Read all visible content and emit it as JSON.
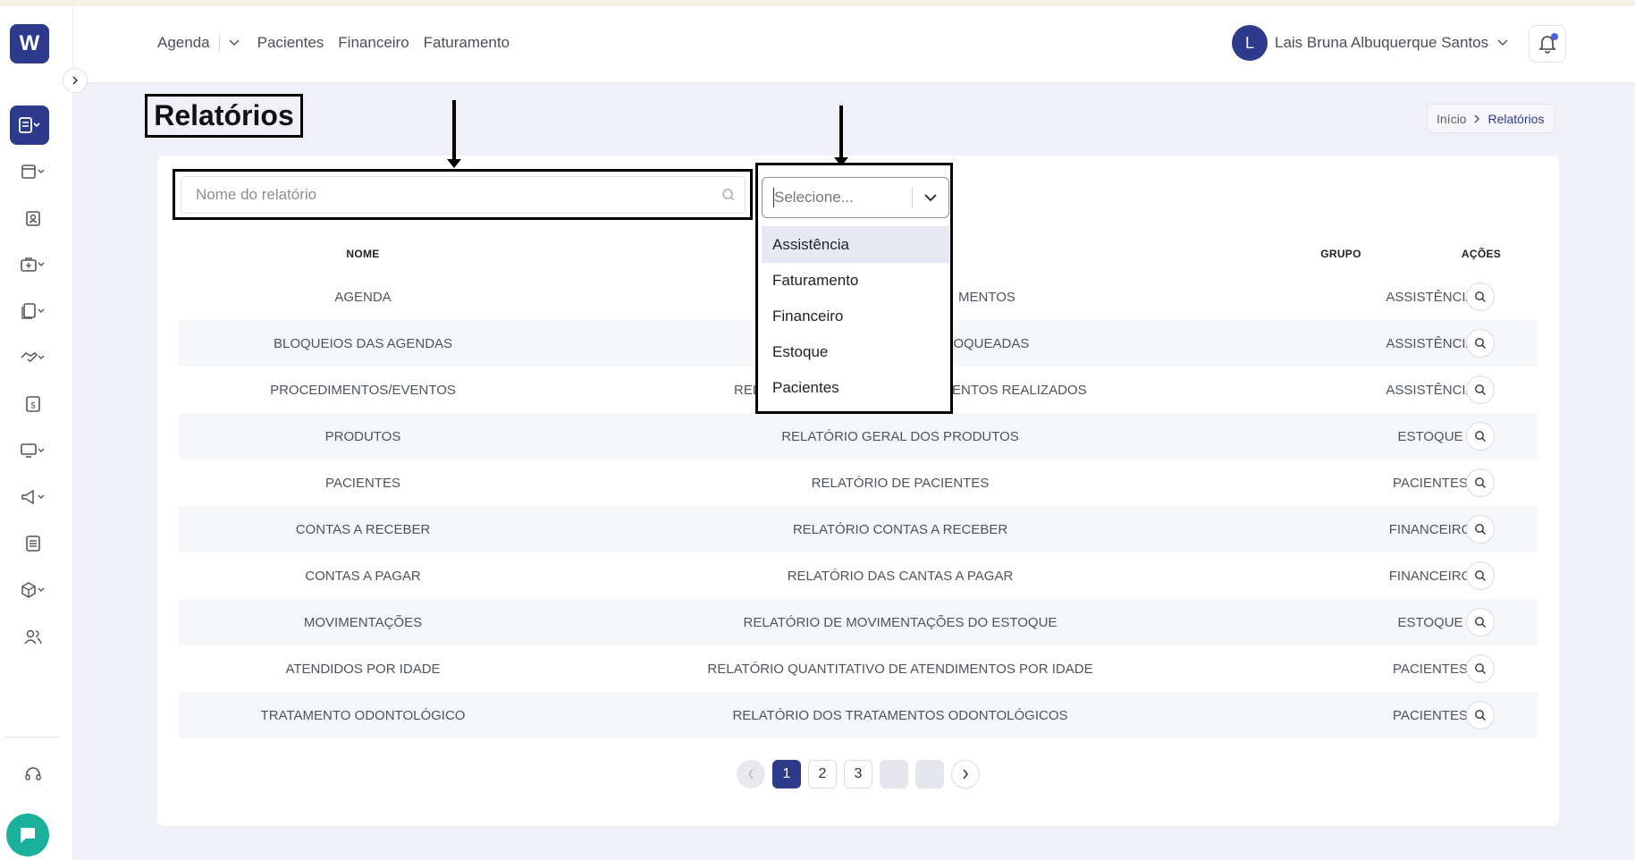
{
  "brand": {
    "logo_letter": "W"
  },
  "header": {
    "nav": [
      {
        "label": "Agenda"
      },
      {
        "label": "Pacientes"
      },
      {
        "label": "Financeiro"
      },
      {
        "label": "Faturamento"
      }
    ],
    "user": {
      "initial": "L",
      "name": "Lais Bruna Albuquerque Santos"
    }
  },
  "page": {
    "title": "Relatórios",
    "breadcrumb": {
      "home": "Início",
      "current": "Relatórios"
    }
  },
  "filters": {
    "search_placeholder": "Nome do relatório",
    "group_select": {
      "placeholder": "Selecione...",
      "options": [
        "Assistência",
        "Faturamento",
        "Financeiro",
        "Estoque",
        "Pacientes"
      ],
      "highlighted": "Assistência"
    }
  },
  "table": {
    "columns": {
      "name": "NOME",
      "group": "GRUPO",
      "actions": "AÇÕES"
    },
    "rows": [
      {
        "name": "AGENDA",
        "description": "MENTOS",
        "group": "ASSISTÊNCIA"
      },
      {
        "name": "BLOQUEIOS DAS AGENDAS",
        "description": "LOQUEADAS",
        "group": "ASSISTÊNCIA"
      },
      {
        "name": "PROCEDIMENTOS/EVENTOS",
        "description_left": "REL",
        "description": "VENTOS REALIZADOS",
        "group": "ASSISTÊNCIA"
      },
      {
        "name": "PRODUTOS",
        "description": "RELATÓRIO GERAL DOS PRODUTOS",
        "group": "ESTOQUE"
      },
      {
        "name": "PACIENTES",
        "description": "RELATÓRIO DE PACIENTES",
        "group": "PACIENTES"
      },
      {
        "name": "CONTAS A RECEBER",
        "description": "RELATÓRIO CONTAS A RECEBER",
        "group": "FINANCEIRO"
      },
      {
        "name": "CONTAS A PAGAR",
        "description": "RELATÓRIO DAS CANTAS A PAGAR",
        "group": "FINANCEIRO"
      },
      {
        "name": "MOVIMENTAÇÕES",
        "description": "RELATÓRIO DE MOVIMENTAÇÕES DO ESTOQUE",
        "group": "ESTOQUE"
      },
      {
        "name": "ATENDIDOS POR IDADE",
        "description": "RELATÓRIO QUANTITATIVO DE ATENDIMENTOS POR IDADE",
        "group": "PACIENTES"
      },
      {
        "name": "TRATAMENTO ODONTOLÓGICO",
        "description": "RELATÓRIO DOS TRATAMENTOS ODONTOLÓGICOS",
        "group": "PACIENTES"
      }
    ]
  },
  "pagination": {
    "pages": [
      "1",
      "2",
      "3"
    ],
    "current": "1"
  },
  "colors": {
    "primary": "#2e3b8c",
    "chat": "#1bb09c",
    "background": "#f0f1f8"
  }
}
